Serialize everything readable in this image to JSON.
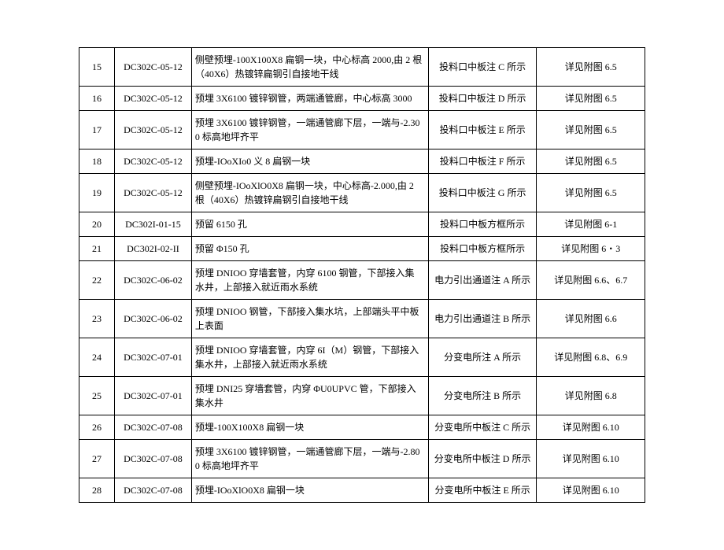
{
  "table": {
    "columns": {
      "widths_pct": [
        5,
        13,
        44,
        19,
        19
      ],
      "aligns": [
        "center",
        "center",
        "left",
        "center",
        "center"
      ]
    },
    "border_color": "#000000",
    "background_color": "#ffffff",
    "font_size_pt": 9,
    "rows": [
      {
        "num": "15",
        "code": "DC302C-05-12",
        "desc": "侧壁预埋-100X100X8 扁钢一块，中心标高 2000,由 2 根（40X6）热镀锌扁钢引自接地干线",
        "loc": "投料口中板注 C 所示",
        "ref": "详见附图 6.5"
      },
      {
        "num": "16",
        "code": "DC302C-05-12",
        "desc": "预埋 3X6100 镀锌钢管，两端通管廊，中心标高 3000",
        "loc": "投料口中板注 D 所示",
        "ref": "详见附图 6.5"
      },
      {
        "num": "17",
        "code": "DC302C-05-12",
        "desc": "预埋 3X6100 镀锌钢管，一端通管廊下层，一端与-2.300 标高地坪齐平",
        "loc": "投料口中板注 E 所示",
        "ref": "详见附图 6.5"
      },
      {
        "num": "18",
        "code": "DC302C-05-12",
        "desc": "预埋-IOoXIo0 义 8 扁钢一块",
        "loc": "投料口中板注 F 所示",
        "ref": "详见附图 6.5"
      },
      {
        "num": "19",
        "code": "DC302C-05-12",
        "desc": "侧壁预埋-IOoXlO0X8 扁钢一块，中心标高-2.000,由 2 根（40X6）热镀锌扁钢引自接地干线",
        "loc": "投料口中板注 G 所示",
        "ref": "详见附图 6.5"
      },
      {
        "num": "20",
        "code": "DC302I-01-15",
        "desc": "预留 6150 孔",
        "loc": "投料口中板方框所示",
        "ref": "详见附图 6-1"
      },
      {
        "num": "21",
        "code": "DC302I-02-II",
        "desc": "预留 Φ150 孔",
        "loc": "投料口中板方框所示",
        "ref": "详见附图 6・3"
      },
      {
        "num": "22",
        "code": "DC302C-06-02",
        "desc": "预埋 DNIOO 穿墙套管，内穿 6100 钢管，下部接入集水井，上部接入就近雨水系统",
        "loc": "电力引出通道注 A 所示",
        "ref": "详见附图 6.6、6.7"
      },
      {
        "num": "23",
        "code": "DC302C-06-02",
        "desc": "预埋 DNIOO 钢管，下部接入集水坑，上部端头平中板上表面",
        "loc": "电力引出通道注 B 所示",
        "ref": "详见附图 6.6"
      },
      {
        "num": "24",
        "code": "DC302C-07-01",
        "desc": "预埋 DNIOO 穿墙套管，内穿 6I（M）钢管，下部接入集水井，上部接入就近雨水系统",
        "loc": "分变电所注 A 所示",
        "ref": "详见附图 6.8、6.9"
      },
      {
        "num": "25",
        "code": "DC302C-07-01",
        "desc": "预埋 DNI25 穿墙套管，内穿 ΦU0UPVC 管，下部接入集水井",
        "loc": "分变电所注 B 所示",
        "ref": "详见附图 6.8"
      },
      {
        "num": "26",
        "code": "DC302C-07-08",
        "desc": "预埋-100X100X8 扁钢一块",
        "loc": "分变电所中板注 C 所示",
        "ref": "详见附图 6.10"
      },
      {
        "num": "27",
        "code": "DC302C-07-08",
        "desc": "预埋 3X6100 镀锌钢管，一端通管廊下层，一端与-2.800 标高地坪齐平",
        "loc": "分变电所中板注 D 所示",
        "ref": "详见附图 6.10"
      },
      {
        "num": "28",
        "code": "DC302C-07-08",
        "desc": "预埋-IOoXlO0X8 扁钢一块",
        "loc": "分变电所中板注 E 所示",
        "ref": "详见附图 6.10"
      }
    ]
  }
}
